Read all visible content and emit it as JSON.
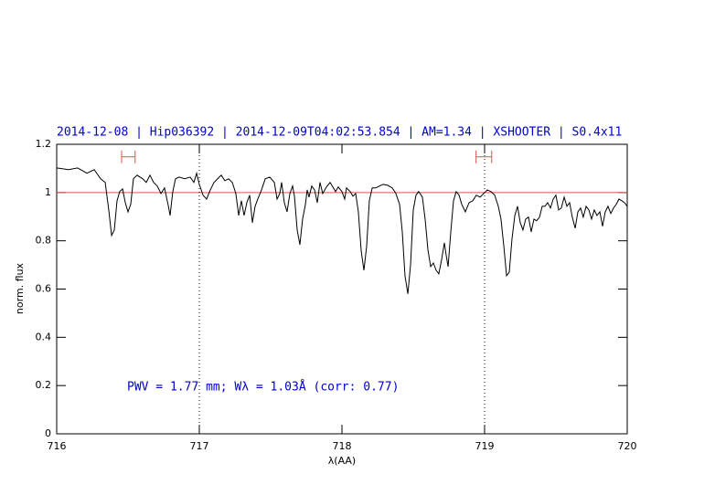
{
  "chart_data": {
    "type": "line",
    "title": "2014-12-08 | Hip036392 | 2014-12-09T04:02:53.854 | AM=1.34 | XSHOOTER | S0.4x11",
    "annotation": "PWV = 1.77 mm; Wλ = 1.03Å (corr: 0.77)",
    "xlabel": "λ(AA)",
    "ylabel": "norm. flux",
    "xlim": [
      716,
      720
    ],
    "xticks": [
      716,
      717,
      718,
      719,
      720
    ],
    "ylim": [
      0,
      1.2
    ],
    "yticks": [
      0,
      0.2,
      0.4,
      0.6,
      0.8,
      1,
      1.2
    ],
    "hline": {
      "value": 1,
      "color": "#e05050"
    },
    "vlines": [
      717,
      719
    ],
    "markers": {
      "color": "#e05050",
      "y": 1.148,
      "ranges": [
        [
          716.455,
          716.55
        ],
        [
          718.94,
          719.05
        ]
      ]
    },
    "series": [
      {
        "color": "#000000",
        "x": [
          716.0,
          716.083,
          716.147,
          716.212,
          716.263,
          716.308,
          716.34,
          716.365,
          716.385,
          716.404,
          716.423,
          716.442,
          716.462,
          716.481,
          716.5,
          716.519,
          716.538,
          716.564,
          716.603,
          716.628,
          716.654,
          716.679,
          716.705,
          716.731,
          716.756,
          716.782,
          716.795,
          716.814,
          716.833,
          716.859,
          716.897,
          716.936,
          716.962,
          716.981,
          717.0,
          717.026,
          717.051,
          717.077,
          717.103,
          717.128,
          717.154,
          717.179,
          717.205,
          717.231,
          717.256,
          717.276,
          717.295,
          717.314,
          717.333,
          717.353,
          717.372,
          717.391,
          717.41,
          717.436,
          717.462,
          717.494,
          717.526,
          717.545,
          717.564,
          717.577,
          717.596,
          717.615,
          717.635,
          717.654,
          717.667,
          717.686,
          717.705,
          717.724,
          717.744,
          717.756,
          717.769,
          717.788,
          717.808,
          717.827,
          717.846,
          717.865,
          717.891,
          717.917,
          717.936,
          717.955,
          717.974,
          718.0,
          718.019,
          718.032,
          718.058,
          718.077,
          718.096,
          718.115,
          718.135,
          718.154,
          718.173,
          718.192,
          718.212,
          718.237,
          718.263,
          718.288,
          718.321,
          718.353,
          718.378,
          718.404,
          718.423,
          718.442,
          718.462,
          718.481,
          718.5,
          718.519,
          718.538,
          718.564,
          718.583,
          718.603,
          718.622,
          718.641,
          718.66,
          718.679,
          718.699,
          718.718,
          718.731,
          718.744,
          718.763,
          718.782,
          718.801,
          718.821,
          718.84,
          718.865,
          718.891,
          718.917,
          718.942,
          718.968,
          718.994,
          719.019,
          719.045,
          719.071,
          719.096,
          719.115,
          719.135,
          719.154,
          719.173,
          719.192,
          719.212,
          719.231,
          719.25,
          719.269,
          719.288,
          719.308,
          719.327,
          719.346,
          719.365,
          719.385,
          719.404,
          719.423,
          719.442,
          719.462,
          719.481,
          719.5,
          719.519,
          719.538,
          719.558,
          719.577,
          719.596,
          719.615,
          719.635,
          719.654,
          719.673,
          719.692,
          719.712,
          719.731,
          719.75,
          719.769,
          719.788,
          719.808,
          719.827,
          719.846,
          719.865,
          719.885,
          719.904,
          719.923,
          719.942,
          719.962,
          719.981,
          720.0
        ],
        "values": [
          1.102,
          1.095,
          1.102,
          1.08,
          1.095,
          1.057,
          1.042,
          0.928,
          0.822,
          0.845,
          0.966,
          1.004,
          1.015,
          0.958,
          0.92,
          0.951,
          1.057,
          1.072,
          1.057,
          1.042,
          1.072,
          1.042,
          1.027,
          0.996,
          1.019,
          0.947,
          0.905,
          1.004,
          1.057,
          1.064,
          1.057,
          1.064,
          1.042,
          1.08,
          1.034,
          0.989,
          0.973,
          1.011,
          1.042,
          1.057,
          1.072,
          1.049,
          1.057,
          1.042,
          0.996,
          0.905,
          0.966,
          0.905,
          0.958,
          0.989,
          0.875,
          0.943,
          0.973,
          1.011,
          1.057,
          1.064,
          1.042,
          0.973,
          0.996,
          1.042,
          0.958,
          0.92,
          0.996,
          1.027,
          0.985,
          0.845,
          0.784,
          0.89,
          0.951,
          1.011,
          0.981,
          1.027,
          1.011,
          0.958,
          1.042,
          0.996,
          1.023,
          1.042,
          1.023,
          1.004,
          1.023,
          1.004,
          0.973,
          1.019,
          1.004,
          0.985,
          0.996,
          0.92,
          0.758,
          0.678,
          0.777,
          0.966,
          1.019,
          1.019,
          1.027,
          1.034,
          1.03,
          1.019,
          0.996,
          0.951,
          0.837,
          0.655,
          0.58,
          0.701,
          0.928,
          0.989,
          1.004,
          0.981,
          0.89,
          0.761,
          0.693,
          0.708,
          0.678,
          0.663,
          0.723,
          0.792,
          0.739,
          0.693,
          0.837,
          0.966,
          1.004,
          0.989,
          0.951,
          0.92,
          0.958,
          0.966,
          0.989,
          0.981,
          0.996,
          1.011,
          1.004,
          0.989,
          0.943,
          0.89,
          0.777,
          0.655,
          0.67,
          0.807,
          0.905,
          0.943,
          0.875,
          0.845,
          0.89,
          0.898,
          0.837,
          0.89,
          0.883,
          0.898,
          0.943,
          0.943,
          0.958,
          0.936,
          0.973,
          0.989,
          0.928,
          0.936,
          0.981,
          0.943,
          0.958,
          0.898,
          0.852,
          0.92,
          0.936,
          0.898,
          0.943,
          0.928,
          0.89,
          0.928,
          0.905,
          0.92,
          0.86,
          0.92,
          0.943,
          0.913,
          0.936,
          0.951,
          0.973,
          0.966,
          0.958,
          0.943
        ]
      }
    ]
  }
}
